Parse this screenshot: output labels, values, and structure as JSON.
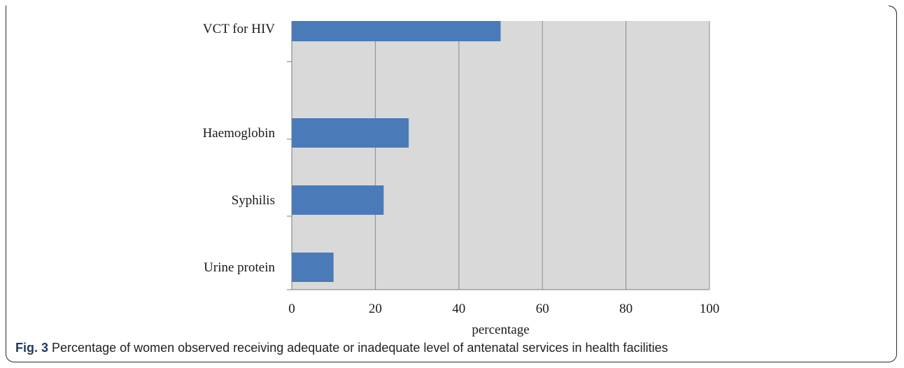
{
  "caption": {
    "label": "Fig. 3",
    "text": "Percentage of women observed receiving adequate or inadequate level of antenatal services in health facilities"
  },
  "chart_data": {
    "type": "bar",
    "orientation": "horizontal",
    "categories": [
      "VCT for HIV",
      "Haemoglobin",
      "Syphilis",
      "Urine protein"
    ],
    "values": [
      50,
      28,
      22,
      10
    ],
    "xlabel": "percentage",
    "xlim": [
      0,
      100
    ],
    "xticks": [
      "0",
      "20",
      "40",
      "60",
      "80",
      "100"
    ],
    "grid": "vertical",
    "colors": {
      "bar": "#4a7ab7",
      "plot_background": "#d9d9d9",
      "gridline": "#8c8c8c"
    }
  }
}
